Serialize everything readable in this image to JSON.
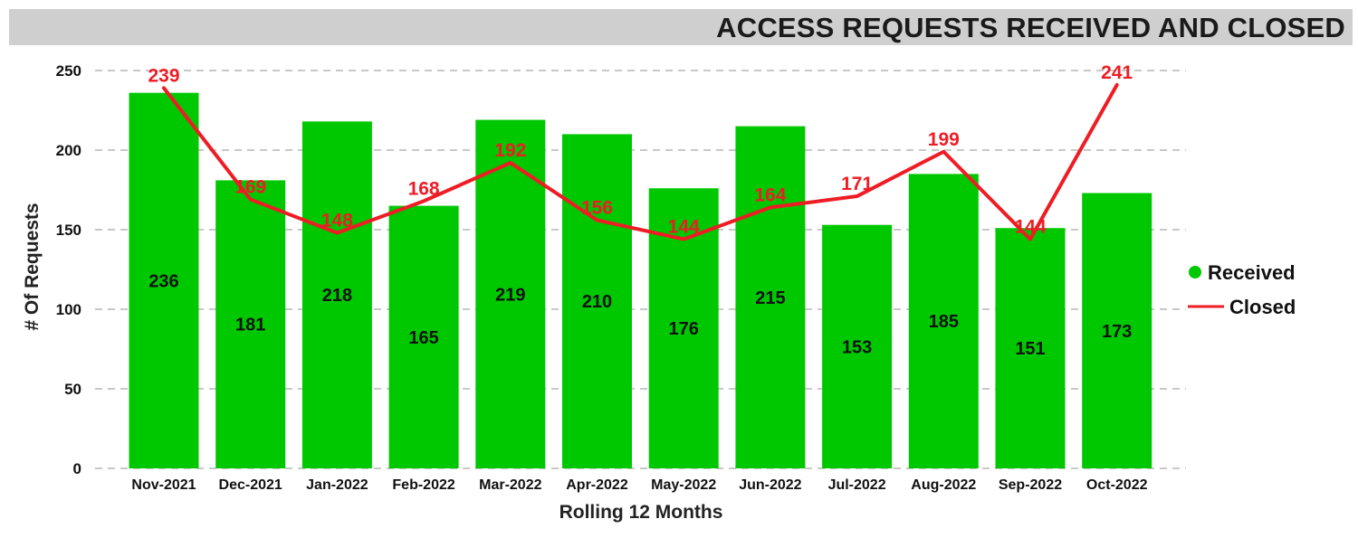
{
  "title": "ACCESS REQUESTS RECEIVED AND CLOSED",
  "colors": {
    "bar": "#00c800",
    "line": "#ee1c25",
    "title_bg": "#cfcfcf",
    "grid": "#c8c8c8"
  },
  "legend": {
    "received": "Received",
    "closed": "Closed"
  },
  "chart_data": {
    "type": "bar",
    "title": "ACCESS REQUESTS RECEIVED AND CLOSED",
    "xlabel": "Rolling 12 Months",
    "ylabel": "# Of Requests",
    "ylim": [
      0,
      250
    ],
    "yticks": [
      0,
      50,
      100,
      150,
      200,
      250
    ],
    "grid": true,
    "legend_position": "right",
    "categories": [
      "Nov-2021",
      "Dec-2021",
      "Jan-2022",
      "Feb-2022",
      "Mar-2022",
      "Apr-2022",
      "May-2022",
      "Jun-2022",
      "Jul-2022",
      "Aug-2022",
      "Sep-2022",
      "Oct-2022"
    ],
    "series": [
      {
        "name": "Received",
        "type": "bar",
        "values": [
          236,
          181,
          218,
          165,
          219,
          210,
          176,
          215,
          153,
          185,
          151,
          173
        ]
      },
      {
        "name": "Closed",
        "type": "line",
        "values": [
          239,
          169,
          148,
          168,
          192,
          156,
          144,
          164,
          171,
          199,
          144,
          241
        ]
      }
    ]
  }
}
